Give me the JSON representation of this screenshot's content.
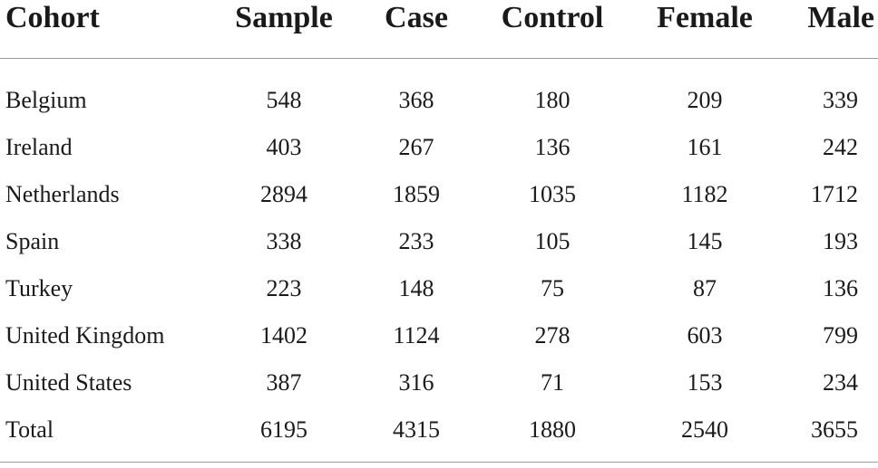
{
  "table": {
    "headers": [
      "Cohort",
      "Sample",
      "Case",
      "Control",
      "Female",
      "Male"
    ],
    "rows": [
      [
        "Belgium",
        "548",
        "368",
        "180",
        "209",
        "339"
      ],
      [
        "Ireland",
        "403",
        "267",
        "136",
        "161",
        "242"
      ],
      [
        "Netherlands",
        "2894",
        "1859",
        "1035",
        "1182",
        "1712"
      ],
      [
        "Spain",
        "338",
        "233",
        "105",
        "145",
        "193"
      ],
      [
        "Turkey",
        "223",
        "148",
        "75",
        "87",
        "136"
      ],
      [
        "United Kingdom",
        "1402",
        "1124",
        "278",
        "603",
        "799"
      ],
      [
        "United States",
        "387",
        "316",
        "71",
        "153",
        "234"
      ],
      [
        "Total",
        "6195",
        "4315",
        "1880",
        "2540",
        "3655"
      ]
    ]
  }
}
